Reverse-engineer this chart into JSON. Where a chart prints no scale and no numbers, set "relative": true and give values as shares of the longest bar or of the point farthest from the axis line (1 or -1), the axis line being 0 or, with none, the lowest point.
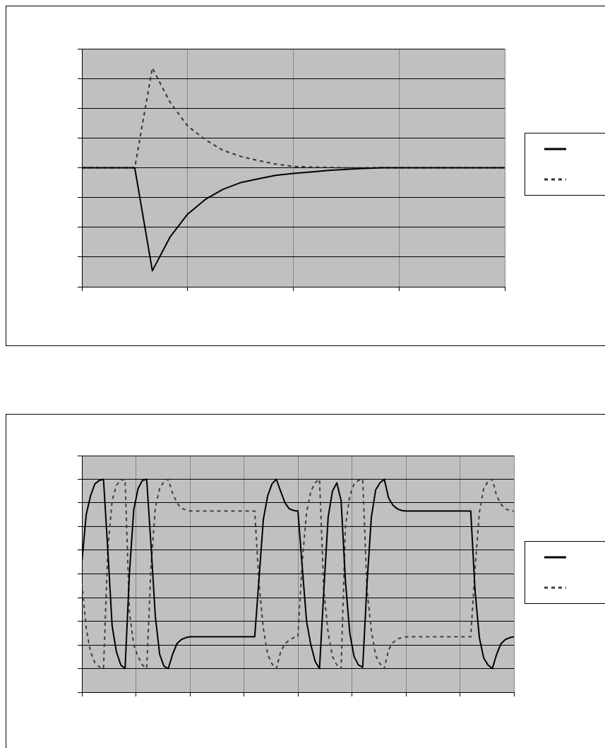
{
  "chart_data": [
    {
      "type": "line",
      "relative": true,
      "tick_labels": false,
      "grid": true,
      "categories": [
        null,
        null,
        null,
        null,
        null,
        null,
        null,
        null,
        null,
        null,
        null,
        null,
        null,
        null,
        null,
        null,
        null,
        null,
        null,
        null,
        null,
        null,
        null,
        null,
        null
      ],
      "series": [
        {
          "color": "#000000",
          "line_style": "solid",
          "values": [
            0.544,
            0.544,
            0.544,
            0.544,
            0.073,
            0.227,
            0.332,
            0.399,
            0.445,
            0.476,
            0.493,
            0.509,
            0.518,
            0.525,
            0.532,
            0.537,
            0.541,
            0.544,
            0.544,
            0.544,
            0.544,
            0.544,
            0.544,
            0.544,
            0.544
          ]
        },
        {
          "color": "#333333",
          "line_style": "dashed",
          "values": [
            0.544,
            0.544,
            0.544,
            0.544,
            1,
            0.844,
            0.735,
            0.673,
            0.624,
            0.596,
            0.577,
            0.561,
            0.55,
            0.547,
            0.546,
            0.544,
            0.544,
            0.544,
            0.544,
            0.544,
            0.544,
            0.544,
            0.544,
            0.544,
            0.544
          ]
        }
      ]
    },
    {
      "type": "line",
      "relative": true,
      "tick_labels": false,
      "grid": true,
      "categories": [
        null,
        null,
        null,
        null,
        null,
        null,
        null,
        null,
        null,
        null,
        null,
        null,
        null,
        null,
        null,
        null,
        null,
        null,
        null,
        null,
        null,
        null,
        null,
        null,
        null,
        null,
        null,
        null,
        null,
        null,
        null,
        null,
        null,
        null,
        null,
        null,
        null,
        null,
        null,
        null,
        null,
        null,
        null,
        null,
        null,
        null,
        null,
        null,
        null,
        null,
        null,
        null,
        null,
        null,
        null,
        null,
        null,
        null,
        null,
        null,
        null,
        null,
        null,
        null,
        null,
        null,
        null,
        null,
        null,
        null,
        null,
        null,
        null,
        null,
        null,
        null,
        null,
        null,
        null,
        null,
        null,
        null,
        null,
        null,
        null,
        null,
        null,
        null,
        null,
        null,
        null,
        null,
        null,
        null,
        null,
        null,
        null,
        null,
        null,
        null,
        null
      ],
      "series": [
        {
          "color": "#000000",
          "line_style": "solid",
          "values": [
            0.611,
            0.833,
            0.922,
            0.978,
            0.994,
            1,
            0.667,
            0.311,
            0.189,
            0.128,
            0.111,
            0.556,
            0.856,
            0.956,
            0.994,
            1,
            0.689,
            0.356,
            0.178,
            0.122,
            0.111,
            0.178,
            0.228,
            0.247,
            0.256,
            0.26,
            0.26,
            0.26,
            0.26,
            0.26,
            0.26,
            0.26,
            0.26,
            0.26,
            0.26,
            0.26,
            0.26,
            0.26,
            0.26,
            0.26,
            0.26,
            0.533,
            0.811,
            0.922,
            0.978,
            1,
            0.944,
            0.889,
            0.861,
            0.853,
            0.851,
            0.589,
            0.333,
            0.222,
            0.144,
            0.111,
            0.478,
            0.822,
            0.944,
            0.983,
            0.9,
            0.522,
            0.278,
            0.167,
            0.128,
            0.117,
            0.511,
            0.822,
            0.95,
            0.983,
            1,
            0.911,
            0.878,
            0.861,
            0.853,
            0.851,
            0.851,
            0.851,
            0.851,
            0.851,
            0.851,
            0.851,
            0.851,
            0.851,
            0.851,
            0.851,
            0.851,
            0.851,
            0.851,
            0.851,
            0.851,
            0.478,
            0.256,
            0.161,
            0.128,
            0.111,
            0.178,
            0.228,
            0.247,
            0.256,
            0.26
          ]
        },
        {
          "color": "#404040",
          "line_style": "dashed",
          "values": [
            0.511,
            0.3,
            0.189,
            0.139,
            0.119,
            0.111,
            0.667,
            0.9,
            0.972,
            0.994,
            1,
            0.378,
            0.222,
            0.167,
            0.128,
            0.113,
            0.589,
            0.867,
            0.956,
            0.989,
            1,
            0.933,
            0.889,
            0.864,
            0.856,
            0.851,
            0.851,
            0.851,
            0.851,
            0.851,
            0.851,
            0.851,
            0.851,
            0.851,
            0.851,
            0.851,
            0.851,
            0.851,
            0.851,
            0.851,
            0.851,
            0.511,
            0.3,
            0.178,
            0.133,
            0.111,
            0.189,
            0.228,
            0.244,
            0.256,
            0.26,
            0.611,
            0.844,
            0.944,
            0.983,
            1,
            0.478,
            0.278,
            0.167,
            0.128,
            0.111,
            0.778,
            0.922,
            0.978,
            0.994,
            1,
            0.478,
            0.289,
            0.172,
            0.133,
            0.111,
            0.2,
            0.233,
            0.25,
            0.256,
            0.26,
            0.26,
            0.26,
            0.26,
            0.26,
            0.26,
            0.26,
            0.26,
            0.26,
            0.26,
            0.26,
            0.26,
            0.26,
            0.26,
            0.26,
            0.26,
            0.578,
            0.844,
            0.956,
            0.989,
            1,
            0.922,
            0.883,
            0.861,
            0.853,
            0.851
          ]
        }
      ]
    }
  ]
}
